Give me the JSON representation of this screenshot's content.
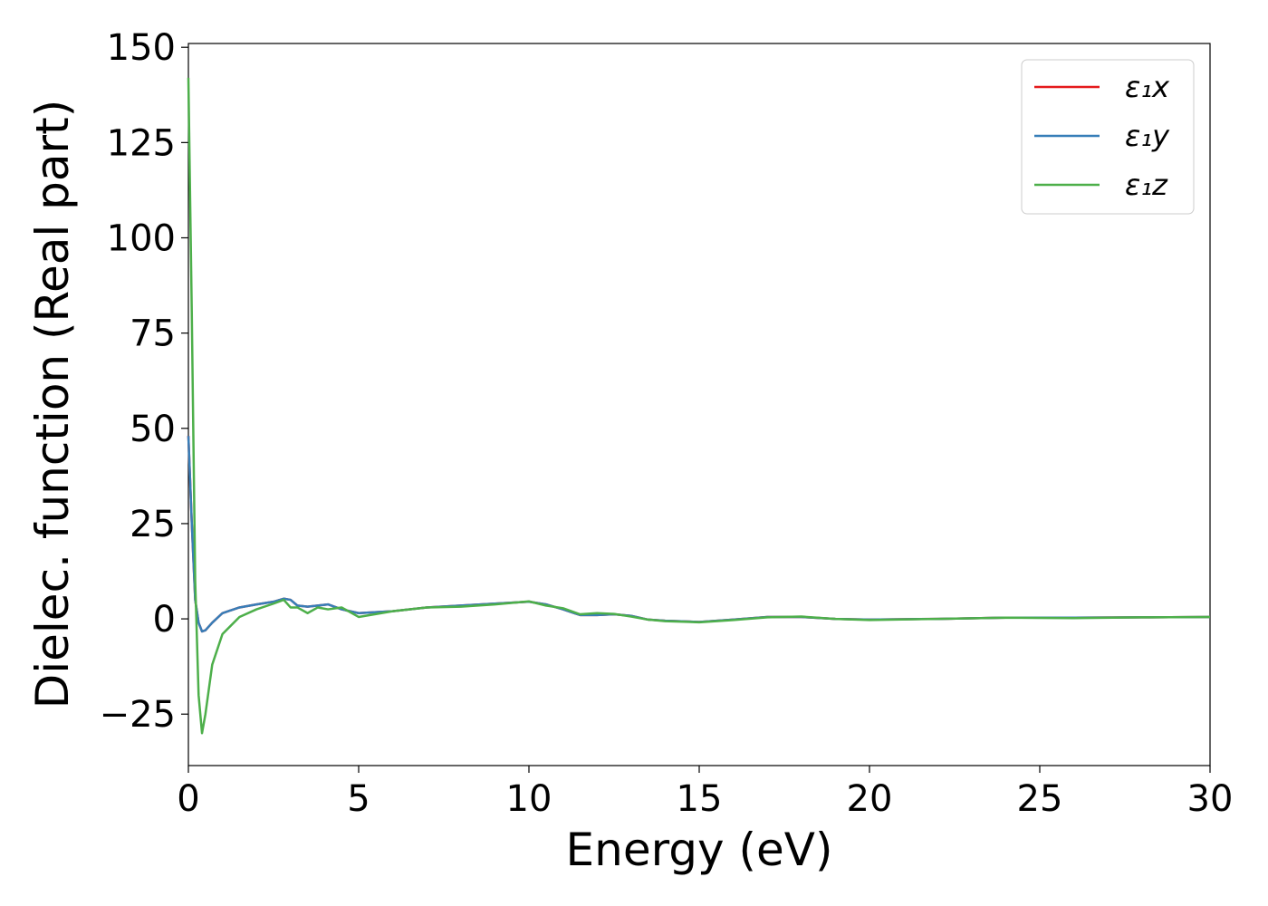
{
  "chart_data": {
    "type": "line",
    "xlabel": "Energy (eV)",
    "ylabel": "Dielec. function (Real part)",
    "x": [
      0,
      0.1,
      0.2,
      0.3,
      0.4,
      0.5,
      0.7,
      1,
      1.5,
      2,
      2.5,
      2.8,
      3,
      3.2,
      3.5,
      3.8,
      4.1,
      4.5,
      5,
      6,
      7,
      8,
      9,
      10,
      10.5,
      11,
      11.5,
      12,
      12.5,
      13,
      13.5,
      14,
      15,
      16,
      17,
      18,
      19,
      20,
      22,
      24,
      26,
      28,
      30
    ],
    "series": [
      {
        "name": "ε₁x",
        "color": "#e41a1c",
        "values": [
          48,
          25,
          5,
          -1,
          -3.3,
          -3,
          -1,
          1.5,
          3,
          3.8,
          4.5,
          5.3,
          5,
          3.5,
          3.2,
          3.5,
          3.8,
          2.5,
          1.5,
          2,
          3,
          3.5,
          4,
          4.5,
          3.8,
          2.5,
          1,
          1,
          1.2,
          0.8,
          -0.2,
          -0.5,
          -0.8,
          -0.2,
          0.5,
          0.5,
          0,
          -0.2,
          0,
          0.3,
          0.3,
          0.4,
          0.5
        ]
      },
      {
        "name": "ε₁y",
        "color": "#377eb8",
        "values": [
          48,
          25,
          5,
          -1,
          -3.3,
          -3,
          -1,
          1.5,
          3,
          3.8,
          4.5,
          5.3,
          5,
          3.5,
          3.2,
          3.5,
          3.8,
          2.5,
          1.5,
          2,
          3,
          3.5,
          4,
          4.5,
          3.8,
          2.5,
          1,
          1,
          1.2,
          0.8,
          -0.2,
          -0.5,
          -0.8,
          -0.2,
          0.5,
          0.5,
          0,
          -0.2,
          0,
          0.3,
          0.3,
          0.4,
          0.5
        ]
      },
      {
        "name": "ε₁z",
        "color": "#4daf4a",
        "values": [
          142,
          80,
          10,
          -20,
          -30,
          -25,
          -12,
          -4,
          0.5,
          2.5,
          4,
          5,
          3,
          3,
          1.5,
          3,
          2.5,
          3,
          0.5,
          2,
          3,
          3.2,
          3.8,
          4.6,
          3.5,
          2.8,
          1.2,
          1.5,
          1.3,
          0.6,
          -0.2,
          -0.6,
          -0.9,
          -0.3,
          0.4,
          0.6,
          0,
          -0.3,
          0,
          0.3,
          0.2,
          0.4,
          0.5
        ]
      }
    ],
    "xlim": [
      0,
      30
    ],
    "xticks": [
      0,
      5,
      10,
      15,
      20,
      25,
      30
    ],
    "ylim": [
      -38.5,
      151
    ],
    "yticks": [
      {
        "value": -25,
        "label": "−25"
      },
      0,
      25,
      50,
      75,
      100,
      125,
      150
    ],
    "grid": false,
    "legend": "upper right"
  }
}
